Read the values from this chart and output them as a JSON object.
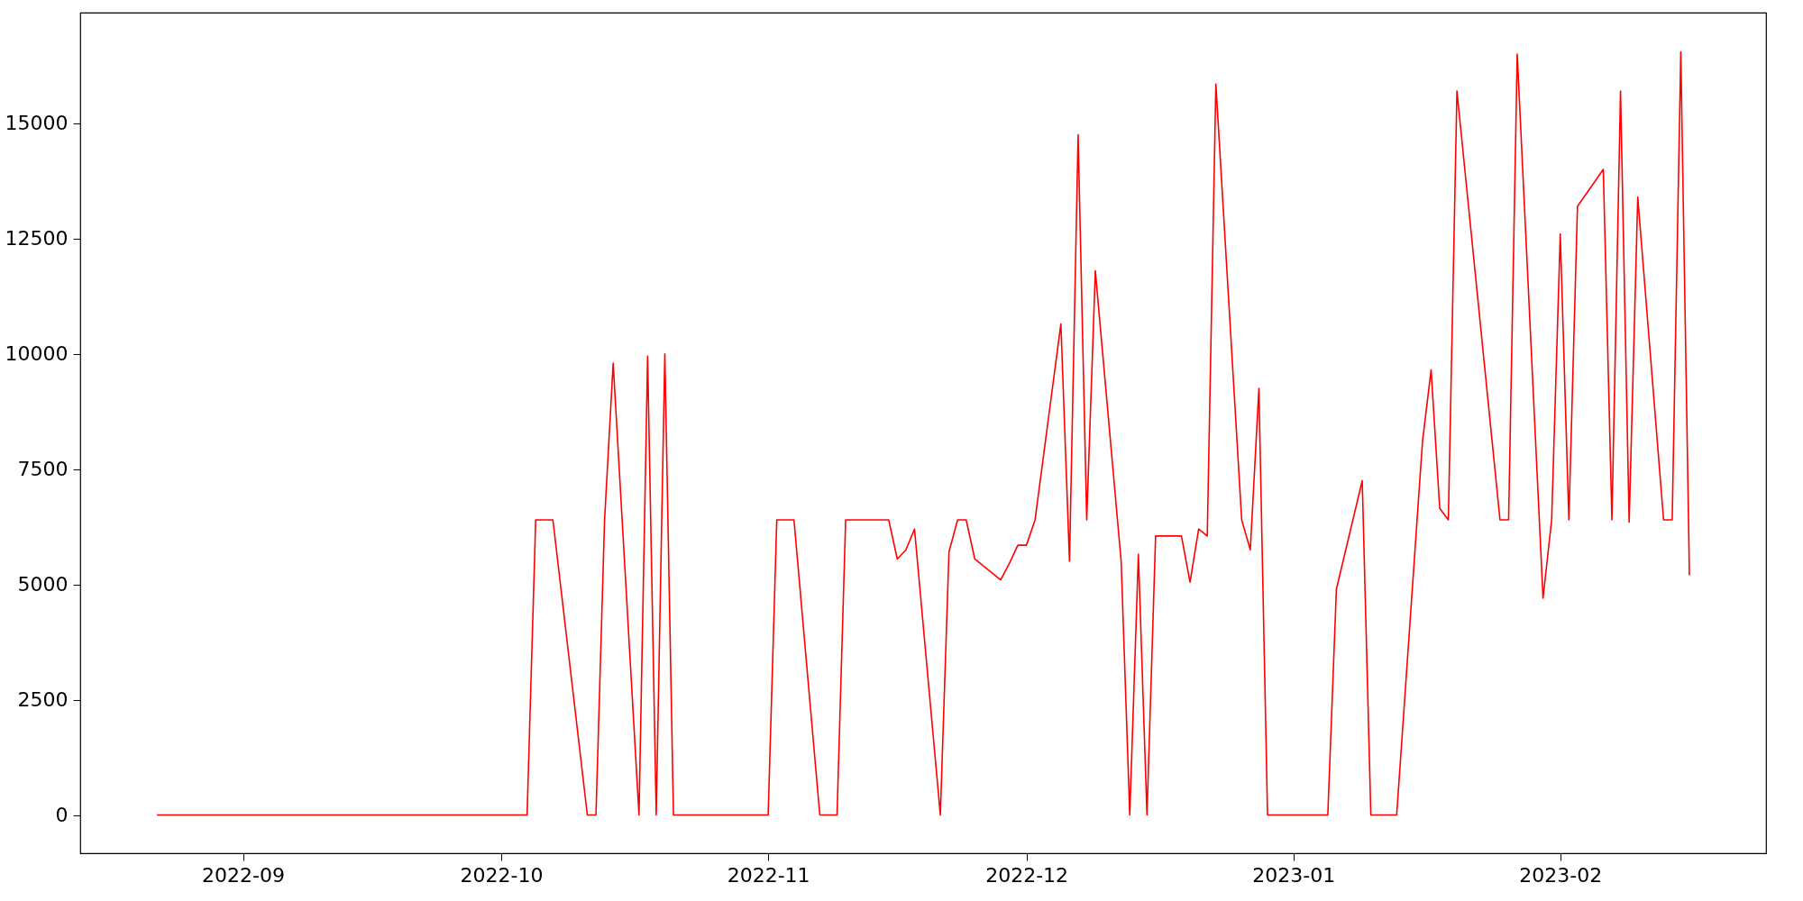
{
  "chart_data": {
    "type": "line",
    "x": [
      "2022-08-22",
      "2022-10-04",
      "2022-10-05",
      "2022-10-07",
      "2022-10-11",
      "2022-10-12",
      "2022-10-13",
      "2022-10-14",
      "2022-10-17",
      "2022-10-18",
      "2022-10-19",
      "2022-10-20",
      "2022-10-21",
      "2022-11-01",
      "2022-11-02",
      "2022-11-04",
      "2022-11-07",
      "2022-11-09",
      "2022-11-10",
      "2022-11-15",
      "2022-11-16",
      "2022-11-17",
      "2022-11-18",
      "2022-11-21",
      "2022-11-22",
      "2022-11-23",
      "2022-11-24",
      "2022-11-25",
      "2022-11-28",
      "2022-11-29",
      "2022-11-30",
      "2022-12-01",
      "2022-12-02",
      "2022-12-05",
      "2022-12-06",
      "2022-12-07",
      "2022-12-08",
      "2022-12-09",
      "2022-12-12",
      "2022-12-13",
      "2022-12-14",
      "2022-12-15",
      "2022-12-16",
      "2022-12-19",
      "2022-12-20",
      "2022-12-21",
      "2022-12-22",
      "2022-12-23",
      "2022-12-26",
      "2022-12-27",
      "2022-12-28",
      "2022-12-29",
      "2023-01-05",
      "2023-01-06",
      "2023-01-09",
      "2023-01-10",
      "2023-01-13",
      "2023-01-16",
      "2023-01-17",
      "2023-01-18",
      "2023-01-19",
      "2023-01-20",
      "2023-01-25",
      "2023-01-26",
      "2023-01-27",
      "2023-01-30",
      "2023-01-31",
      "2023-02-01",
      "2023-02-02",
      "2023-02-03",
      "2023-02-06",
      "2023-02-07",
      "2023-02-08",
      "2023-02-09",
      "2023-02-10",
      "2023-02-13",
      "2023-02-14",
      "2023-02-15",
      "2023-02-16"
    ],
    "series": [
      {
        "color": "#ff0000",
        "values": [
          0,
          0,
          6400,
          6400,
          0,
          0,
          6400,
          9800,
          0,
          9950,
          0,
          10000,
          0,
          0,
          6400,
          6400,
          0,
          0,
          6400,
          6400,
          5550,
          5750,
          6200,
          0,
          5700,
          6400,
          6400,
          5550,
          5100,
          5450,
          5850,
          5850,
          6400,
          10650,
          5500,
          14750,
          6400,
          11800,
          5500,
          0,
          5650,
          0,
          6050,
          6050,
          5050,
          6200,
          6050,
          15850,
          6400,
          5750,
          9250,
          0,
          0,
          4900,
          7250,
          0,
          0,
          8100,
          9650,
          6650,
          6400,
          15700,
          6400,
          6400,
          16500,
          4700,
          6400,
          12600,
          6400,
          13200,
          14000,
          6400,
          15700,
          6350,
          13400,
          6400,
          6400,
          16550,
          5200
        ]
      }
    ],
    "xlim": [
      "2022-08-13T02:24",
      "2023-02-24T21:36"
    ],
    "xticks": [
      {
        "value": "2022-09-01",
        "label": "2022-09"
      },
      {
        "value": "2022-10-01",
        "label": "2022-10"
      },
      {
        "value": "2022-11-01",
        "label": "2022-11"
      },
      {
        "value": "2022-12-01",
        "label": "2022-12"
      },
      {
        "value": "2023-01-01",
        "label": "2023-01"
      },
      {
        "value": "2023-02-01",
        "label": "2023-02"
      }
    ],
    "ylim": [
      -830,
      17400
    ],
    "yticks": [
      0,
      2500,
      5000,
      7500,
      10000,
      12500,
      15000
    ],
    "line_style": "solid",
    "marker": "none",
    "grid": false
  }
}
